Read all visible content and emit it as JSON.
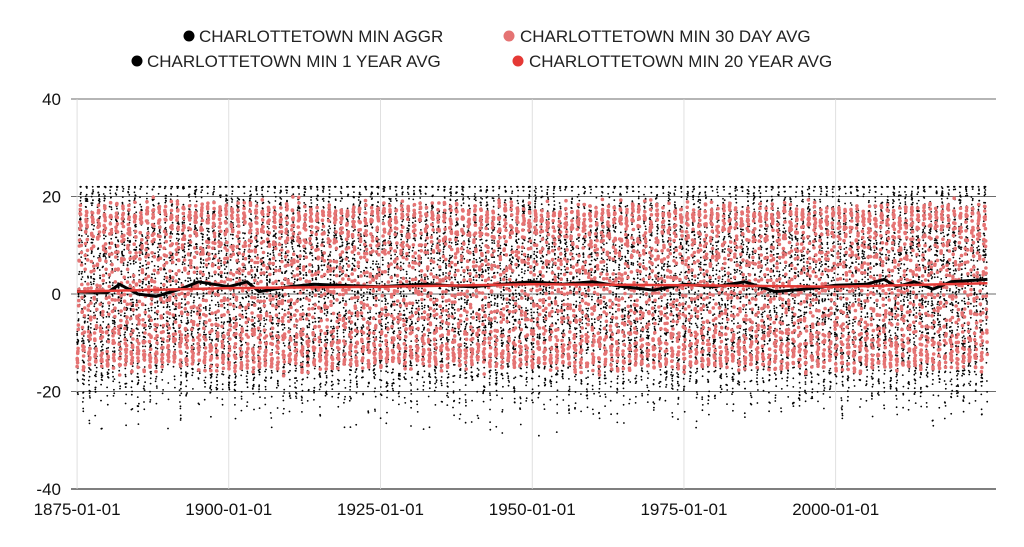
{
  "chart_data": {
    "type": "scatter",
    "title": "",
    "xlabel": "",
    "ylabel": "",
    "x_type": "date",
    "xlim": [
      "1874-01-01",
      "2026-06-01"
    ],
    "ylim": [
      -40,
      40
    ],
    "y_ticks": [
      "40",
      "20",
      "0",
      "-20",
      "-40"
    ],
    "y_tick_values": [
      40,
      20,
      0,
      -20,
      -40
    ],
    "x_ticks": [
      "1875-01-01",
      "1900-01-01",
      "1925-01-01",
      "1950-01-01",
      "1975-01-01",
      "2000-01-01"
    ],
    "grid": true,
    "legend_position": "top",
    "series": [
      {
        "name": "CHARLOTTETOWN MIN AGGR",
        "color": "#000000",
        "marker": "dot",
        "description": "daily minimum temperature, oscillating seasonally between about -20 and 20, extremes from about -33 to 22",
        "seasonal_mean": 1.5,
        "seasonal_amplitude": 16,
        "max": 22,
        "min": -33
      },
      {
        "name": "CHARLOTTETOWN MIN 30 DAY AVG",
        "color": "#e57373",
        "marker": "dot",
        "seasonal_mean": 1.5,
        "seasonal_amplitude": 15.5
      },
      {
        "name": "CHARLOTTETOWN MIN 1 YEAR AVG",
        "color": "#000000",
        "marker": "line",
        "x": [
          "1875-01-01",
          "1880-01-01",
          "1882-01-01",
          "1885-01-01",
          "1888-01-01",
          "1892-01-01",
          "1895-01-01",
          "1900-01-01",
          "1903-01-01",
          "1905-01-01",
          "1910-01-01",
          "1914-01-01",
          "1918-01-01",
          "1925-01-01",
          "1932-01-01",
          "1940-01-01",
          "1945-01-01",
          "1950-01-01",
          "1955-01-01",
          "1960-01-01",
          "1965-01-01",
          "1970-01-01",
          "1975-01-01",
          "1980-01-01",
          "1985-01-01",
          "1990-01-01",
          "1995-01-01",
          "2000-01-01",
          "2005-01-01",
          "2008-01-01",
          "2010-01-01",
          "2013-01-01",
          "2016-01-01",
          "2019-01-01",
          "2025-01-01"
        ],
        "y": [
          0.5,
          0.3,
          2.0,
          0.0,
          -0.5,
          1.0,
          2.5,
          1.5,
          2.5,
          0.5,
          1.5,
          2.0,
          1.8,
          1.5,
          2.0,
          1.5,
          2.0,
          2.5,
          2.0,
          2.5,
          1.5,
          0.8,
          2.0,
          1.5,
          2.5,
          0.5,
          1.0,
          1.8,
          2.0,
          3.0,
          1.5,
          2.5,
          1.0,
          2.5,
          3.0
        ]
      },
      {
        "name": "CHARLOTTETOWN MIN 20 YEAR AVG",
        "color": "#e53935",
        "marker": "line",
        "x": [
          "1875-01-01",
          "1900-01-01",
          "1925-01-01",
          "1950-01-01",
          "1975-01-01",
          "2000-01-01",
          "2025-01-01"
        ],
        "y": [
          0.5,
          1.2,
          1.5,
          2.0,
          1.8,
          1.5,
          2.2
        ]
      }
    ]
  }
}
